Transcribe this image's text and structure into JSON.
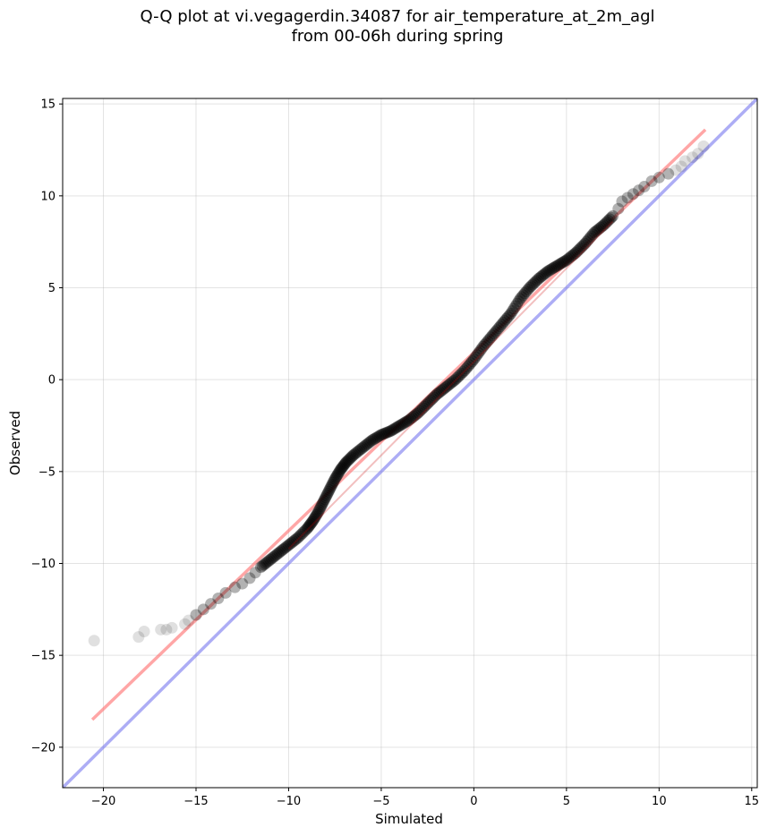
{
  "chart_data": {
    "type": "scatter",
    "title": "Q-Q plot at vi.vegagerdin.34087 for air_temperature_at_2m_agl",
    "subtitle": "from 00-06h during spring",
    "xlabel": "Simulated",
    "ylabel": "Observed",
    "xlim": [
      -22.2,
      15.3
    ],
    "ylim": [
      -22.2,
      15.3
    ],
    "xticks": [
      -20,
      -15,
      -10,
      -5,
      0,
      5,
      10,
      15
    ],
    "yticks": [
      -20,
      -15,
      -10,
      -5,
      0,
      5,
      10,
      15
    ],
    "grid": true,
    "colors": {
      "points": "#000000",
      "fit_line": "#ff6b6b",
      "identity_line": "#7777ee"
    },
    "fit_line": {
      "x": [
        -20.6,
        12.5
      ],
      "y": [
        -18.5,
        13.6
      ]
    },
    "identity_line": {
      "x": [
        -22.2,
        15.3
      ],
      "y": [
        -22.2,
        15.3
      ]
    },
    "points_sparse": {
      "x": [
        -20.5,
        -18.1,
        -17.8,
        -16.9,
        -16.6,
        -16.3,
        -15.6,
        -15.4,
        -15.0,
        -14.6,
        -14.2,
        -13.8,
        -13.4,
        -12.9,
        -12.5,
        -12.1,
        -11.8,
        7.8,
        8.0,
        8.3,
        8.6,
        8.9,
        9.2,
        9.6,
        10.0,
        10.5,
        10.9,
        11.2,
        11.4,
        11.8,
        12.1,
        12.4
      ],
      "y": [
        -14.2,
        -14.0,
        -13.7,
        -13.6,
        -13.6,
        -13.5,
        -13.3,
        -13.1,
        -12.8,
        -12.5,
        -12.2,
        -11.9,
        -11.6,
        -11.3,
        -11.1,
        -10.8,
        -10.5,
        9.3,
        9.7,
        9.9,
        10.1,
        10.3,
        10.5,
        10.8,
        11.0,
        11.2,
        11.4,
        11.6,
        11.9,
        12.1,
        12.3,
        12.7
      ]
    },
    "points_dense_curve": {
      "x": [
        -11.5,
        -11.0,
        -10.5,
        -10.0,
        -9.5,
        -9.0,
        -8.7,
        -8.4,
        -8.1,
        -7.8,
        -7.5,
        -7.2,
        -6.9,
        -6.5,
        -6.0,
        -5.5,
        -5.0,
        -4.5,
        -4.0,
        -3.5,
        -3.0,
        -2.5,
        -2.0,
        -1.5,
        -1.0,
        -0.5,
        0.0,
        0.5,
        1.0,
        1.5,
        2.0,
        2.5,
        3.0,
        3.5,
        4.0,
        4.5,
        5.0,
        5.5,
        6.0,
        6.5,
        7.0,
        7.5
      ],
      "y": [
        -10.2,
        -9.8,
        -9.4,
        -9.0,
        -8.6,
        -8.1,
        -7.7,
        -7.2,
        -6.6,
        -6.0,
        -5.4,
        -4.9,
        -4.5,
        -4.1,
        -3.7,
        -3.3,
        -3.0,
        -2.8,
        -2.5,
        -2.2,
        -1.8,
        -1.3,
        -0.8,
        -0.4,
        0.0,
        0.5,
        1.1,
        1.8,
        2.4,
        3.0,
        3.6,
        4.4,
        5.0,
        5.5,
        5.9,
        6.2,
        6.5,
        6.9,
        7.4,
        8.0,
        8.4,
        8.9
      ]
    }
  }
}
